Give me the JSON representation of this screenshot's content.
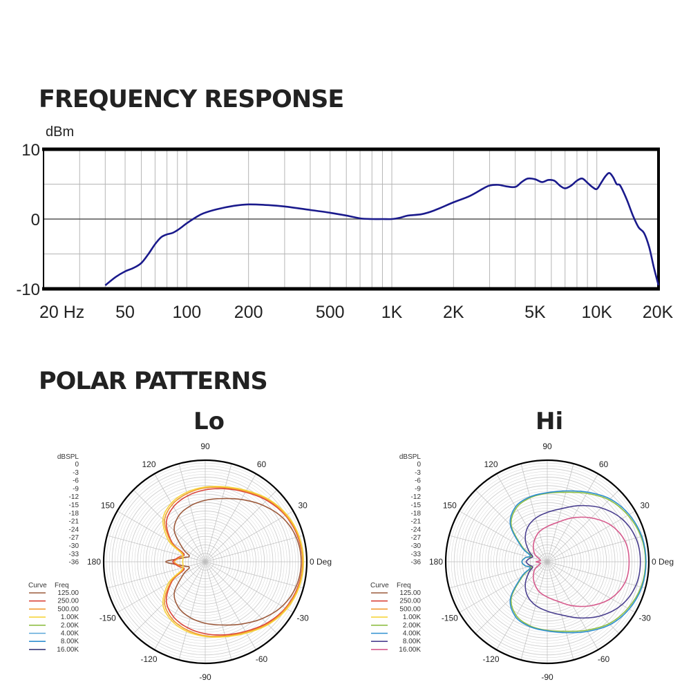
{
  "headings": {
    "frequency_response": "FREQUENCY RESPONSE",
    "polar_patterns": "POLAR PATTERNS"
  },
  "chart_data": [
    {
      "type": "line",
      "ylabel": "dBm",
      "x_scale": "log",
      "xlim": [
        20,
        20000
      ],
      "ylim": [
        -10,
        10
      ],
      "x_tick_labels": [
        "20 Hz",
        "50",
        "100",
        "200",
        "500",
        "1K",
        "2K",
        "5K",
        "10K",
        "20K"
      ],
      "x_tick_values": [
        20,
        50,
        100,
        200,
        500,
        1000,
        2000,
        5000,
        10000,
        20000
      ],
      "y_tick_labels": [
        "10",
        "0",
        "-10"
      ],
      "y_tick_values": [
        10,
        0,
        -10
      ],
      "grid": true,
      "series_color": "#1a1a8c",
      "series": [
        {
          "x": [
            40,
            45,
            50,
            55,
            60,
            65,
            70,
            75,
            80,
            85,
            90,
            95,
            100,
            110,
            120,
            140,
            170,
            200,
            250,
            300,
            400,
            500,
            600,
            700,
            800,
            900,
            1000,
            1100,
            1200,
            1400,
            1600,
            2000,
            2400,
            2800,
            3000,
            3300,
            3600,
            4000,
            4300,
            4600,
            5000,
            5400,
            5800,
            6200,
            6600,
            7000,
            7500,
            8000,
            8500,
            9000,
            9500,
            10000,
            10500,
            11000,
            11500,
            12000,
            12500,
            13000,
            14000,
            15000,
            16000,
            17000,
            18000,
            19000,
            20000
          ],
          "y": [
            -9.5,
            -8.3,
            -7.5,
            -7,
            -6.3,
            -5,
            -3.6,
            -2.6,
            -2.2,
            -2,
            -1.6,
            -1.1,
            -0.6,
            0.2,
            0.8,
            1.4,
            1.9,
            2.1,
            2,
            1.8,
            1.3,
            0.9,
            0.5,
            0.1,
            0,
            0,
            0,
            0.2,
            0.5,
            0.7,
            1.2,
            2.4,
            3.3,
            4.4,
            4.8,
            4.9,
            4.7,
            4.6,
            5.3,
            5.8,
            5.7,
            5.3,
            5.6,
            5.5,
            4.8,
            4.4,
            4.8,
            5.5,
            5.8,
            5.2,
            4.6,
            4.3,
            5.2,
            6.1,
            6.6,
            6,
            5,
            4.8,
            2.8,
            0.5,
            -1.2,
            -2,
            -4,
            -7,
            -9.5
          ]
        }
      ]
    },
    {
      "type": "polar",
      "title": "Lo",
      "radial_unit": "dBSPL",
      "radial_tick_labels": [
        "0",
        "-3",
        "-6",
        "-9",
        "-12",
        "-15",
        "-18",
        "-21",
        "-24",
        "-27",
        "-30",
        "-33",
        "-36"
      ],
      "angle_labels": [
        "0 Deg",
        "30",
        "60",
        "90",
        "120",
        "150",
        "180",
        "-150",
        "-120",
        "-90",
        "-60",
        "-30"
      ],
      "legend_header": [
        "Curve",
        "Freq"
      ],
      "legend": [
        {
          "freq": "125.00",
          "color": "#9c5a3c"
        },
        {
          "freq": "250.00",
          "color": "#d9433a"
        },
        {
          "freq": "500.00",
          "color": "#f2992e"
        },
        {
          "freq": "1.00K",
          "color": "#f6d43c"
        },
        {
          "freq": "2.00K",
          "color": "#8fbf45"
        },
        {
          "freq": "4.00K",
          "color": "#5aa7d8"
        },
        {
          "freq": "8.00K",
          "color": "#2e8fd0"
        },
        {
          "freq": "16.00K",
          "color": "#3a3a7a"
        }
      ],
      "series": [
        {
          "name": "125.00",
          "color": "#9c5a3c",
          "angles_deg": [
            0,
            15,
            30,
            45,
            60,
            75,
            90,
            105,
            120,
            135,
            150,
            160,
            170,
            180
          ],
          "db": [
            -2,
            -2.6,
            -4.5,
            -7.5,
            -10.5,
            -12.8,
            -14.2,
            -15.5,
            -17.2,
            -20.5,
            -27,
            -30,
            -28,
            -22
          ]
        },
        {
          "name": "250.00",
          "color": "#d9433a",
          "angles_deg": [
            0,
            15,
            30,
            45,
            60,
            75,
            90,
            105,
            120,
            135,
            150,
            160,
            170,
            180
          ],
          "db": [
            -1.5,
            -2,
            -3.2,
            -5.2,
            -7.5,
            -9.2,
            -10.5,
            -11.8,
            -13.5,
            -16.5,
            -22.5,
            -28,
            -26.5,
            -24.5
          ]
        },
        {
          "name": "500.00",
          "color": "#f2992e",
          "angles_deg": [
            0,
            15,
            30,
            45,
            60,
            75,
            90,
            105,
            120,
            135,
            150,
            160,
            170,
            180
          ],
          "db": [
            -1.5,
            -1.8,
            -3,
            -4.8,
            -7.2,
            -8.8,
            -9.8,
            -11,
            -12.6,
            -15.6,
            -22,
            -27.5,
            -27,
            -25
          ]
        },
        {
          "name": "1.00K",
          "color": "#f6d43c",
          "angles_deg": [
            0,
            15,
            30,
            45,
            60,
            75,
            90,
            105,
            120,
            135,
            150,
            160,
            170,
            180
          ],
          "db": [
            -1.2,
            -1.5,
            -2.6,
            -4.5,
            -6.8,
            -8.5,
            -9.5,
            -10.5,
            -12,
            -14.8,
            -21,
            -27,
            -28,
            -28
          ]
        }
      ]
    },
    {
      "type": "polar",
      "title": "Hi",
      "radial_unit": "dBSPL",
      "radial_tick_labels": [
        "0",
        "-3",
        "-6",
        "-9",
        "-12",
        "-15",
        "-18",
        "-21",
        "-24",
        "-27",
        "-30",
        "-33",
        "-36"
      ],
      "angle_labels": [
        "0 Deg",
        "30",
        "60",
        "90",
        "120",
        "150",
        "180",
        "-150",
        "-120",
        "-90",
        "-60",
        "-30"
      ],
      "legend_header": [
        "Curve",
        "Freq"
      ],
      "legend": [
        {
          "freq": "125.00",
          "color": "#9c5a3c"
        },
        {
          "freq": "250.00",
          "color": "#d9433a"
        },
        {
          "freq": "500.00",
          "color": "#f2992e"
        },
        {
          "freq": "1.00K",
          "color": "#f6d43c"
        },
        {
          "freq": "2.00K",
          "color": "#8fbf45"
        },
        {
          "freq": "4.00K",
          "color": "#2e8fd0"
        },
        {
          "freq": "8.00K",
          "color": "#4a3f8f"
        },
        {
          "freq": "16.00K",
          "color": "#d65a8c"
        }
      ],
      "series": [
        {
          "name": "2.00K",
          "color": "#8fbf45",
          "angles_deg": [
            0,
            15,
            30,
            45,
            60,
            75,
            90,
            105,
            120,
            135,
            150,
            160,
            170,
            180
          ],
          "db": [
            -1.2,
            -1.6,
            -3,
            -5,
            -8,
            -10.5,
            -11.7,
            -12.5,
            -14,
            -18,
            -26,
            -30,
            -28,
            -27
          ]
        },
        {
          "name": "4.00K",
          "color": "#2e8fd0",
          "angles_deg": [
            0,
            15,
            30,
            45,
            60,
            75,
            90,
            105,
            120,
            135,
            150,
            160,
            170,
            180
          ],
          "db": [
            -1,
            -1.3,
            -2.5,
            -4.5,
            -7.5,
            -10,
            -11.5,
            -12.2,
            -13.5,
            -17.5,
            -25.5,
            -29.5,
            -28,
            -27
          ]
        },
        {
          "name": "8.00K",
          "color": "#4a3f8f",
          "angles_deg": [
            0,
            15,
            30,
            45,
            60,
            75,
            90,
            105,
            120,
            135,
            150,
            160,
            170,
            180
          ],
          "db": [
            -3,
            -3.5,
            -5.5,
            -9,
            -13,
            -16.5,
            -18.5,
            -20,
            -22,
            -25,
            -28.5,
            -30.5,
            -29.5,
            -28.5
          ]
        },
        {
          "name": "16.00K",
          "color": "#d65a8c",
          "angles_deg": [
            0,
            15,
            30,
            45,
            60,
            75,
            90,
            105,
            120,
            135,
            150,
            160,
            170,
            180
          ],
          "db": [
            -7,
            -7.5,
            -10,
            -14,
            -18,
            -21.5,
            -23.5,
            -25,
            -27,
            -29,
            -31,
            -33,
            -33.5,
            -32
          ]
        }
      ]
    }
  ]
}
